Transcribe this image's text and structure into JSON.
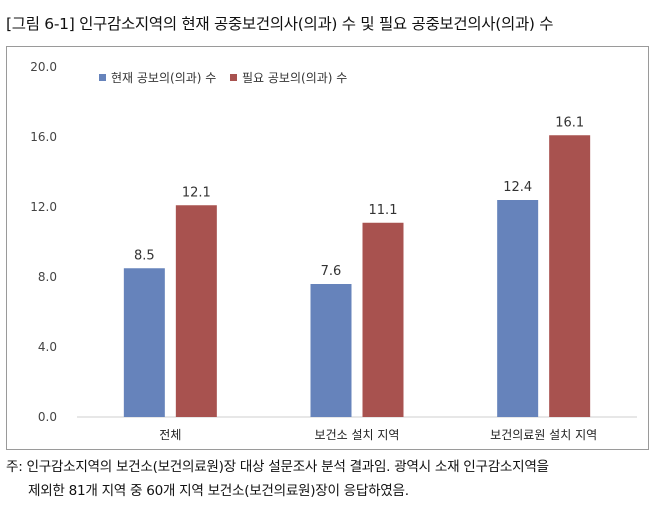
{
  "figure": {
    "title": "[그림 6-1] 인구감소지역의 현재 공중보건의사(의과) 수 및 필요 공중보건의사(의과) 수"
  },
  "note": {
    "line1": "주: 인구감소지역의 보건소(보건의료원)장 대상 설문조사 분석 결과임. 광역시 소재 인구감소지역을",
    "line2": "제외한 81개 지역 중 60개 지역 보건소(보건의료원)장이 응답하였음."
  },
  "chart_data": {
    "type": "bar",
    "categories": [
      "전체",
      "보건소 설치 지역",
      "보건의료원 설치 지역"
    ],
    "series": [
      {
        "name": "현재 공보의(의과) 수",
        "values": [
          8.5,
          7.6,
          12.4
        ],
        "color": "#6683bb"
      },
      {
        "name": "필요 공보의(의과) 수",
        "values": [
          12.1,
          11.1,
          16.1
        ],
        "color": "#a8524f"
      }
    ],
    "data_labels": [
      [
        "8.5",
        "7.6",
        "12.4"
      ],
      [
        "12.1",
        "11.1",
        "16.1"
      ]
    ],
    "ylim": [
      0,
      20
    ],
    "yticks": [
      0,
      4,
      8,
      12,
      16,
      20
    ],
    "ytick_labels": [
      "0.0",
      "4.0",
      "8.0",
      "12.0",
      "16.0",
      "20.0"
    ],
    "grid": false,
    "legend_position": "top-left"
  }
}
